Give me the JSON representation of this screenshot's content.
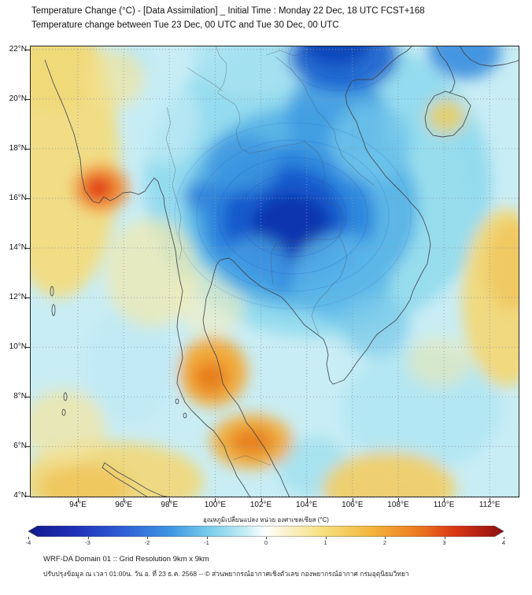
{
  "header": {
    "title_line1": "Temperature Change (°C) - [Data Assimilation] _ Initial Time : Monday 22 Dec, 18 UTC FCST+168",
    "title_line2": "Temperature change between Tue 23 Dec, 00 UTC and Tue 30 Dec, 00 UTC"
  },
  "map": {
    "bounds": {
      "lon_min": 91.9,
      "lon_max": 113.3,
      "lat_min": 3.95,
      "lat_max": 22.15
    },
    "lat_ticks": [
      {
        "value": 22,
        "label": "22°N"
      },
      {
        "value": 20,
        "label": "20°N"
      },
      {
        "value": 18,
        "label": "18°N"
      },
      {
        "value": 16,
        "label": "16°N"
      },
      {
        "value": 14,
        "label": "14°N"
      },
      {
        "value": 12,
        "label": "12°N"
      },
      {
        "value": 10,
        "label": "10°N"
      },
      {
        "value": 8,
        "label": "8°N"
      },
      {
        "value": 6,
        "label": "6°N"
      },
      {
        "value": 4,
        "label": "4°N"
      }
    ],
    "lon_ticks": [
      {
        "value": 94,
        "label": "94°E"
      },
      {
        "value": 96,
        "label": "96°E"
      },
      {
        "value": 98,
        "label": "98°E"
      },
      {
        "value": 100,
        "label": "100°E"
      },
      {
        "value": 102,
        "label": "102°E"
      },
      {
        "value": 104,
        "label": "104°E"
      },
      {
        "value": 106,
        "label": "106°E"
      },
      {
        "value": 108,
        "label": "108°E"
      },
      {
        "value": 110,
        "label": "110°E"
      },
      {
        "value": 112,
        "label": "112°E"
      }
    ],
    "field_blobs": [
      [
        104.5,
        16.6,
        7.6,
        6.2,
        "#8fd9ee",
        0.9
      ],
      [
        108.5,
        15.5,
        2.6,
        3.5,
        "#9adfee",
        0.75
      ],
      [
        109.0,
        7.5,
        3.5,
        2.5,
        "#aee6f2",
        0.8
      ],
      [
        96.3,
        9.3,
        2.0,
        2.4,
        "#bfeaf4",
        0.8
      ],
      [
        97.8,
        19.2,
        1.5,
        1.8,
        "#c3ecf5",
        0.7
      ],
      [
        101.5,
        21.6,
        2.5,
        1.5,
        "#a8e2f0",
        0.8
      ],
      [
        96.4,
        21.6,
        0.9,
        0.7,
        "#b9e8f2",
        0.8
      ],
      [
        104.3,
        5.2,
        1.6,
        1.2,
        "#9fe0ee",
        0.8
      ],
      [
        93.2,
        17.5,
        2.6,
        5.5,
        "#f2dc80",
        0.95
      ],
      [
        93.0,
        21.2,
        2.2,
        1.7,
        "#f0d878",
        0.9
      ],
      [
        95.6,
        20.8,
        1.3,
        1.2,
        "#f3e396",
        0.65
      ],
      [
        95.0,
        16.4,
        1.2,
        0.95,
        "#f28c30",
        0.95
      ],
      [
        94.9,
        16.4,
        0.6,
        0.45,
        "#dd2812",
        0.95
      ],
      [
        97.2,
        13.0,
        2.0,
        2.2,
        "#f6e8a6",
        0.65
      ],
      [
        99.8,
        11.8,
        1.5,
        1.4,
        "#f7eeba",
        0.55
      ],
      [
        99.9,
        9.0,
        1.5,
        1.4,
        "#f3a832",
        0.95
      ],
      [
        99.8,
        8.8,
        0.75,
        0.65,
        "#e8791a",
        0.9
      ],
      [
        101.6,
        6.2,
        1.8,
        1.1,
        "#f3a832",
        0.9
      ],
      [
        101.6,
        6.2,
        0.95,
        0.55,
        "#e8791a",
        0.85
      ],
      [
        95.5,
        4.6,
        4.0,
        1.6,
        "#f2d878",
        0.9
      ],
      [
        94.3,
        4.3,
        2.0,
        1.0,
        "#f0c256",
        0.75
      ],
      [
        93.4,
        6.8,
        1.8,
        1.5,
        "#f5e49c",
        0.7
      ],
      [
        107.6,
        4.3,
        2.9,
        1.5,
        "#f2cd64",
        0.9
      ],
      [
        112.7,
        12.0,
        1.9,
        3.6,
        "#f2d878",
        0.95
      ],
      [
        113.0,
        13.3,
        1.2,
        1.8,
        "#f0c256",
        0.7
      ],
      [
        110.1,
        19.3,
        0.85,
        0.7,
        "#f0d060",
        0.85
      ],
      [
        109.8,
        9.4,
        1.4,
        1.0,
        "#f6e8a6",
        0.5
      ],
      [
        103.8,
        15.6,
        5.1,
        4.1,
        "#55b2e6",
        0.9
      ],
      [
        103.2,
        15.2,
        3.8,
        3.0,
        "#2b86dd",
        0.95
      ],
      [
        103.0,
        15.1,
        2.7,
        2.2,
        "#1557cb",
        0.95
      ],
      [
        103.3,
        14.9,
        1.7,
        1.3,
        "#0a33ad",
        0.95
      ],
      [
        99.4,
        16.1,
        0.8,
        0.6,
        "#2e7fd8",
        0.8
      ],
      [
        101.2,
        17.4,
        1.6,
        1.2,
        "#3f97e0",
        0.8
      ],
      [
        101.8,
        13.4,
        1.4,
        1.1,
        "#4aa5e4",
        0.75
      ],
      [
        105.3,
        19.3,
        2.2,
        1.8,
        "#3f9be2",
        0.85
      ],
      [
        105.6,
        21.7,
        2.4,
        1.4,
        "#1b63cf",
        0.9
      ],
      [
        105.3,
        22.2,
        1.5,
        0.9,
        "#0f46bb",
        0.9
      ],
      [
        110.9,
        21.9,
        1.6,
        1.1,
        "#2f86dd",
        0.85
      ],
      [
        106.8,
        18.2,
        1.8,
        1.6,
        "#6fc4ea",
        0.8
      ],
      [
        105.5,
        12.8,
        2.2,
        1.8,
        "#5cb8e8",
        0.8
      ],
      [
        107.0,
        10.8,
        1.5,
        1.2,
        "#7ccbea",
        0.75
      ]
    ]
  },
  "colorbar": {
    "label": "อุณหภูมิเปลี่ยนแปลง หน่วย องศาเซลเซียส (°C)",
    "min": -4,
    "max": 4,
    "ticks": [
      {
        "value": -4,
        "label": "-4"
      },
      {
        "value": -3,
        "label": "-3"
      },
      {
        "value": -2,
        "label": "-2"
      },
      {
        "value": -1,
        "label": "-1"
      },
      {
        "value": 0,
        "label": "0"
      },
      {
        "value": 1,
        "label": "1"
      },
      {
        "value": 2,
        "label": "2"
      },
      {
        "value": 3,
        "label": "3"
      },
      {
        "value": 4,
        "label": "4"
      }
    ],
    "stops": [
      {
        "at": 0.0,
        "color": "#10188c"
      },
      {
        "at": 0.1,
        "color": "#2030b8"
      },
      {
        "at": 0.2,
        "color": "#2f5fd6"
      },
      {
        "at": 0.3,
        "color": "#3f97e2"
      },
      {
        "at": 0.38,
        "color": "#79cdea"
      },
      {
        "at": 0.46,
        "color": "#c8eef5"
      },
      {
        "at": 0.5,
        "color": "#ffffff"
      },
      {
        "at": 0.54,
        "color": "#fbf3cf"
      },
      {
        "at": 0.62,
        "color": "#f7df7e"
      },
      {
        "at": 0.72,
        "color": "#f4b63e"
      },
      {
        "at": 0.82,
        "color": "#ec7a20"
      },
      {
        "at": 0.9,
        "color": "#d93414"
      },
      {
        "at": 1.0,
        "color": "#8e0e10"
      }
    ]
  },
  "footer": {
    "line1": "WRF-DA Domain 01 :: Grid Resolution 9km x 9km",
    "line2": "ปรับปรุงข้อมูล ณ เวลา 01:00น. วัน อ. ที่ 23 ธ.ค. 2568 -- © ส่วนพยากรณ์อากาศเชิงตัวเลข กองพยากรณ์อากาศ กรมอุตุนิยมวิทยา"
  }
}
